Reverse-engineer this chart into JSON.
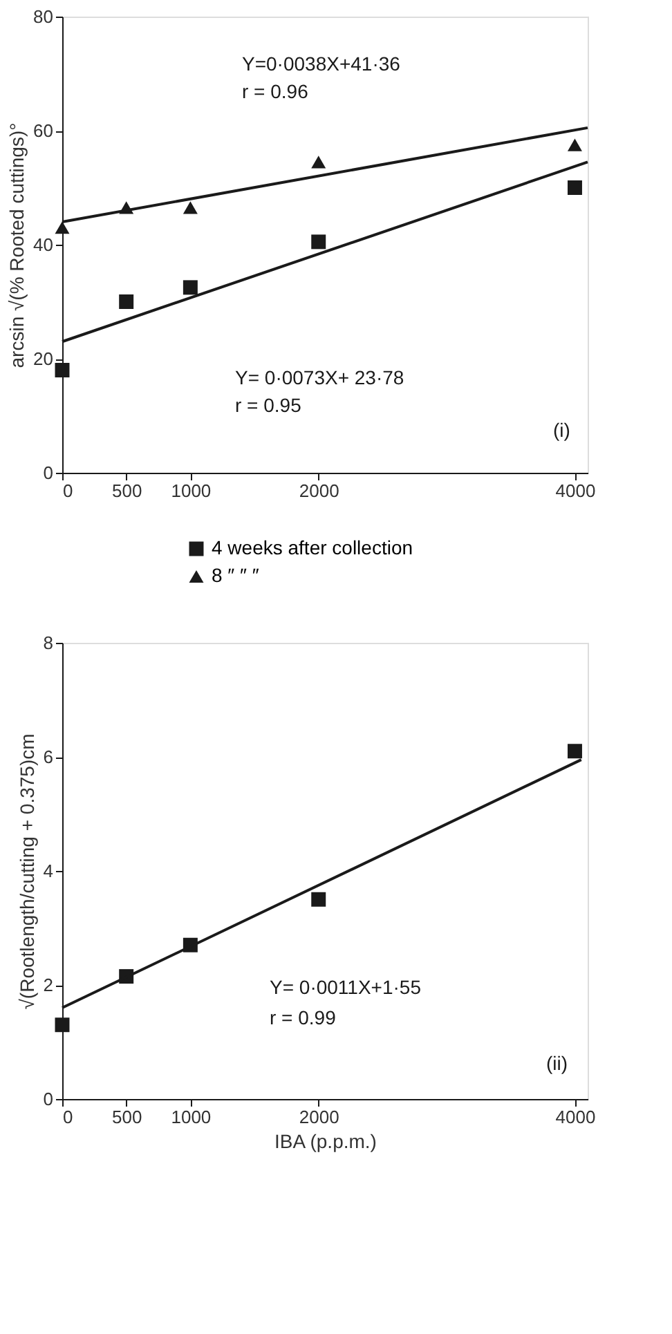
{
  "chart_data": [
    {
      "type": "scatter",
      "ylabel": "arcsin √(% Rooted cuttings)°",
      "xlim": [
        0,
        4100
      ],
      "xticks": [
        0,
        500,
        1000,
        2000,
        4000
      ],
      "ylim": [
        0,
        80
      ],
      "yticks": [
        0,
        20,
        40,
        60,
        80
      ],
      "grid": false,
      "legend": "bottom",
      "x": [
        0,
        500,
        1000,
        2000,
        4000
      ],
      "series": [
        {
          "name": "4 weeks after collection",
          "color": "#1a1a1a",
          "marker": "square",
          "values": [
            18,
            30,
            32.5,
            40.5,
            50
          ]
        },
        {
          "name": "8   ″   ″   ″",
          "color": "#1a1a1a",
          "marker": "triangle",
          "values": [
            43,
            46.5,
            46.5,
            54.5,
            57.5
          ]
        },
        {
          "type": "line",
          "color": "#1a1a1a",
          "marker": "none",
          "x": [
            0,
            4100
          ],
          "values": [
            23,
            54.5
          ]
        },
        {
          "type": "line",
          "color": "#1a1a1a",
          "marker": "none",
          "x": [
            0,
            4100
          ],
          "values": [
            44,
            60.5
          ]
        }
      ],
      "annotations": [
        "Y=0·0038X+41·36",
        "r = 0.96",
        "Y= 0·0073X+ 23·78",
        "r = 0.95",
        "(i)"
      ]
    },
    {
      "type": "scatter",
      "xlabel": "IBA (p.p.m.)",
      "ylabel": "√(Rootlength/cutting + 0.375)cm",
      "xlim": [
        0,
        4100
      ],
      "xticks": [
        0,
        500,
        1000,
        2000,
        4000
      ],
      "ylim": [
        0,
        8
      ],
      "yticks": [
        0,
        2,
        4,
        6,
        8
      ],
      "grid": false,
      "x": [
        0,
        500,
        1000,
        2000,
        4000
      ],
      "series": [
        {
          "color": "#1a1a1a",
          "marker": "square",
          "values": [
            1.3,
            2.15,
            2.7,
            3.5,
            6.1
          ]
        },
        {
          "type": "line",
          "color": "#1a1a1a",
          "marker": "none",
          "x": [
            0,
            4050
          ],
          "values": [
            1.6,
            5.95
          ]
        }
      ],
      "annotations": [
        "Y= 0·0011X+1·55",
        "r = 0.99",
        "(ii)"
      ]
    }
  ]
}
